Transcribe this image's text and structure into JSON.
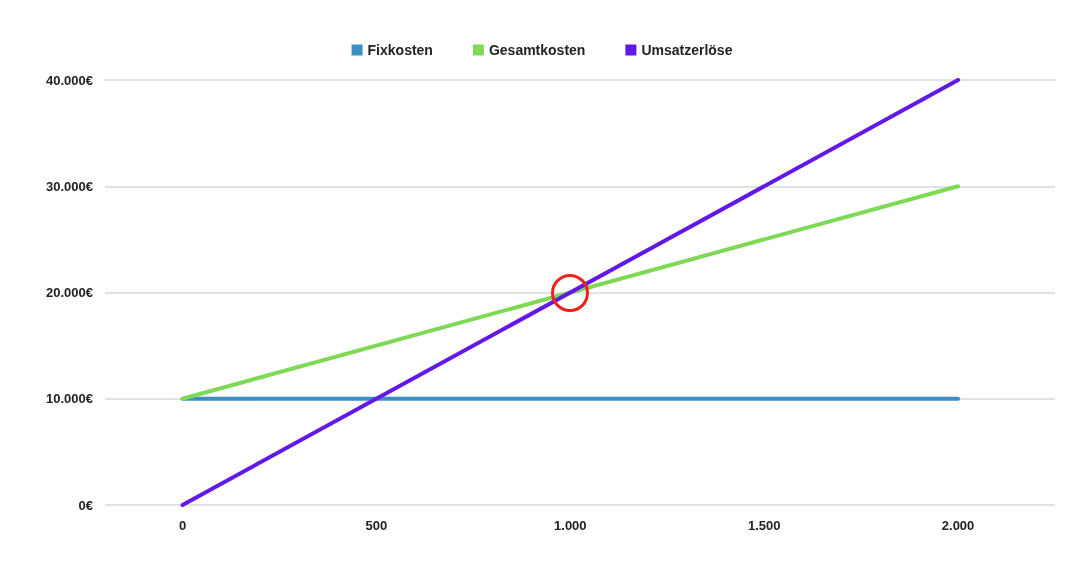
{
  "chart_data": {
    "type": "line",
    "x": [
      0,
      2000
    ],
    "series": [
      {
        "name": "Fixkosten",
        "color": "#3a8fc4",
        "values": [
          10000,
          10000
        ]
      },
      {
        "name": "Gesamtkosten",
        "color": "#7ed957",
        "values": [
          10000,
          30000
        ]
      },
      {
        "name": "Umsatzerlöse",
        "color": "#6218e8",
        "values": [
          0,
          40000
        ]
      }
    ],
    "xlim": [
      -200,
      2250
    ],
    "xticks": [
      0,
      500,
      {
        "value": 1000,
        "label": "1.000"
      },
      {
        "value": 1500,
        "label": "1.500"
      },
      {
        "value": 2000,
        "label": "2.000"
      }
    ],
    "ylim": [
      0,
      40000
    ],
    "yticks": [
      {
        "value": 0,
        "label": "0€"
      },
      {
        "value": 10000,
        "label": "10.000€"
      },
      {
        "value": 20000,
        "label": "20.000€"
      },
      {
        "value": 30000,
        "label": "30.000€"
      },
      {
        "value": 40000,
        "label": "40.000€"
      }
    ],
    "grid": "y",
    "legend": "top",
    "marker": "none",
    "line_style": "solid"
  }
}
